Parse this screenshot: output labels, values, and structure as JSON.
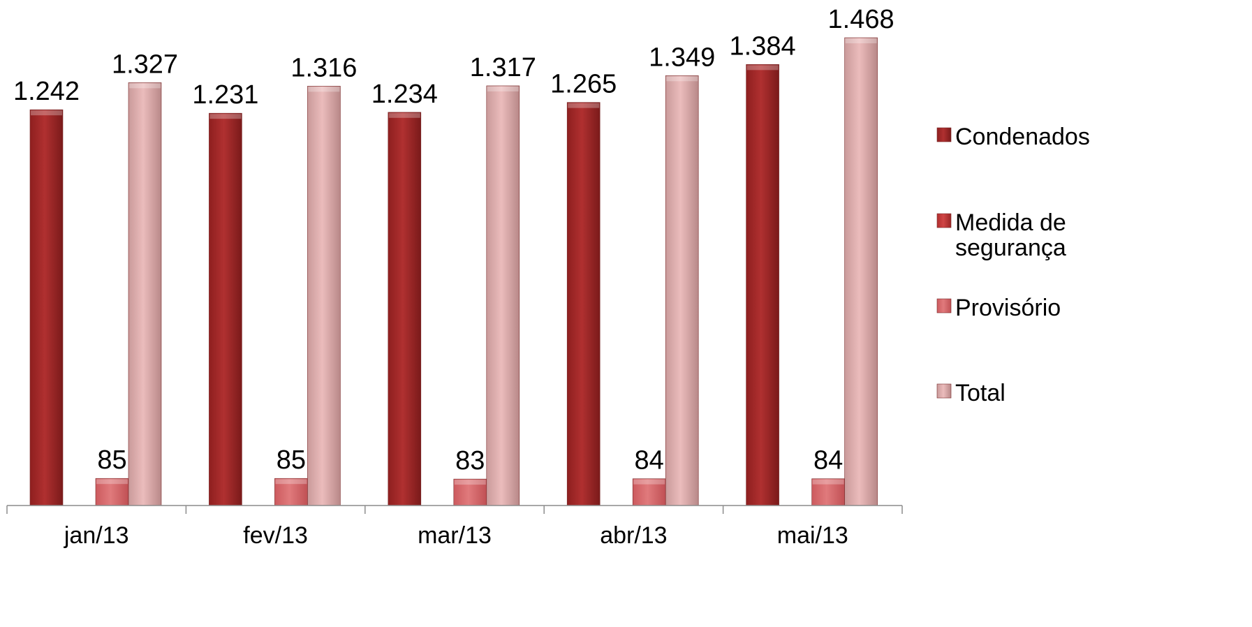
{
  "chart_data": {
    "type": "bar",
    "title": "",
    "xlabel": "",
    "ylabel": "",
    "categories": [
      "jan/13",
      "fev/13",
      "mar/13",
      "abr/13",
      "mai/13"
    ],
    "series": [
      {
        "name": "Condenados",
        "values": [
          1242,
          1231,
          1234,
          1265,
          1384
        ],
        "labels": [
          "1.242",
          "1.231",
          "1.234",
          "1.265",
          "1.384"
        ],
        "color": "#a32a2a"
      },
      {
        "name": "Medida de segurança",
        "values": [
          0,
          0,
          0,
          0,
          0
        ],
        "labels": [
          "",
          "",
          "",
          "",
          ""
        ],
        "color": "#c0392b"
      },
      {
        "name": "Provisório",
        "values": [
          85,
          85,
          83,
          84,
          84
        ],
        "labels": [
          "85",
          "85",
          "83",
          "84",
          "84"
        ],
        "color": "#d9666a"
      },
      {
        "name": "Total",
        "values": [
          1327,
          1316,
          1317,
          1349,
          1468
        ],
        "labels": [
          "1.327",
          "1.316",
          "1.317",
          "1.349",
          "1.468"
        ],
        "color": "#e8b4b4"
      }
    ],
    "legend_lines": [
      [
        "Condenados"
      ],
      [
        "Medida de",
        "segurança"
      ],
      [
        "Provisório"
      ],
      [
        "Total"
      ]
    ],
    "ylim": [
      0,
      1468
    ],
    "grid": false,
    "legend_position": "right"
  }
}
